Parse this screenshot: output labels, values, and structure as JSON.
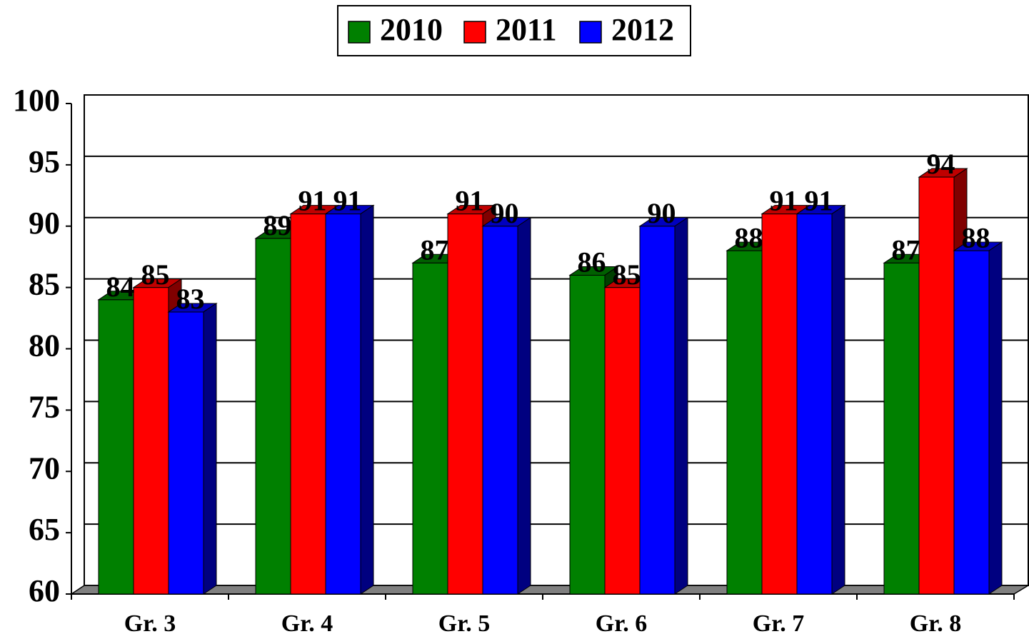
{
  "chart_data": {
    "type": "bar3d",
    "categories": [
      "Gr. 3",
      "Gr. 4",
      "Gr. 5",
      "Gr. 6",
      "Gr. 7",
      "Gr. 8"
    ],
    "series": [
      {
        "name": "2010",
        "color": "#008000",
        "values": [
          84,
          89,
          87,
          86,
          88,
          87
        ]
      },
      {
        "name": "2011",
        "color": "#ff0000",
        "values": [
          85,
          91,
          91,
          85,
          91,
          94
        ]
      },
      {
        "name": "2012",
        "color": "#0000ff",
        "values": [
          83,
          91,
          90,
          90,
          91,
          88
        ]
      }
    ],
    "ylim": [
      60,
      100
    ],
    "yticks": [
      60,
      65,
      70,
      75,
      80,
      85,
      90,
      95,
      100
    ],
    "grid": true,
    "legend": "top",
    "data_labels": true
  }
}
